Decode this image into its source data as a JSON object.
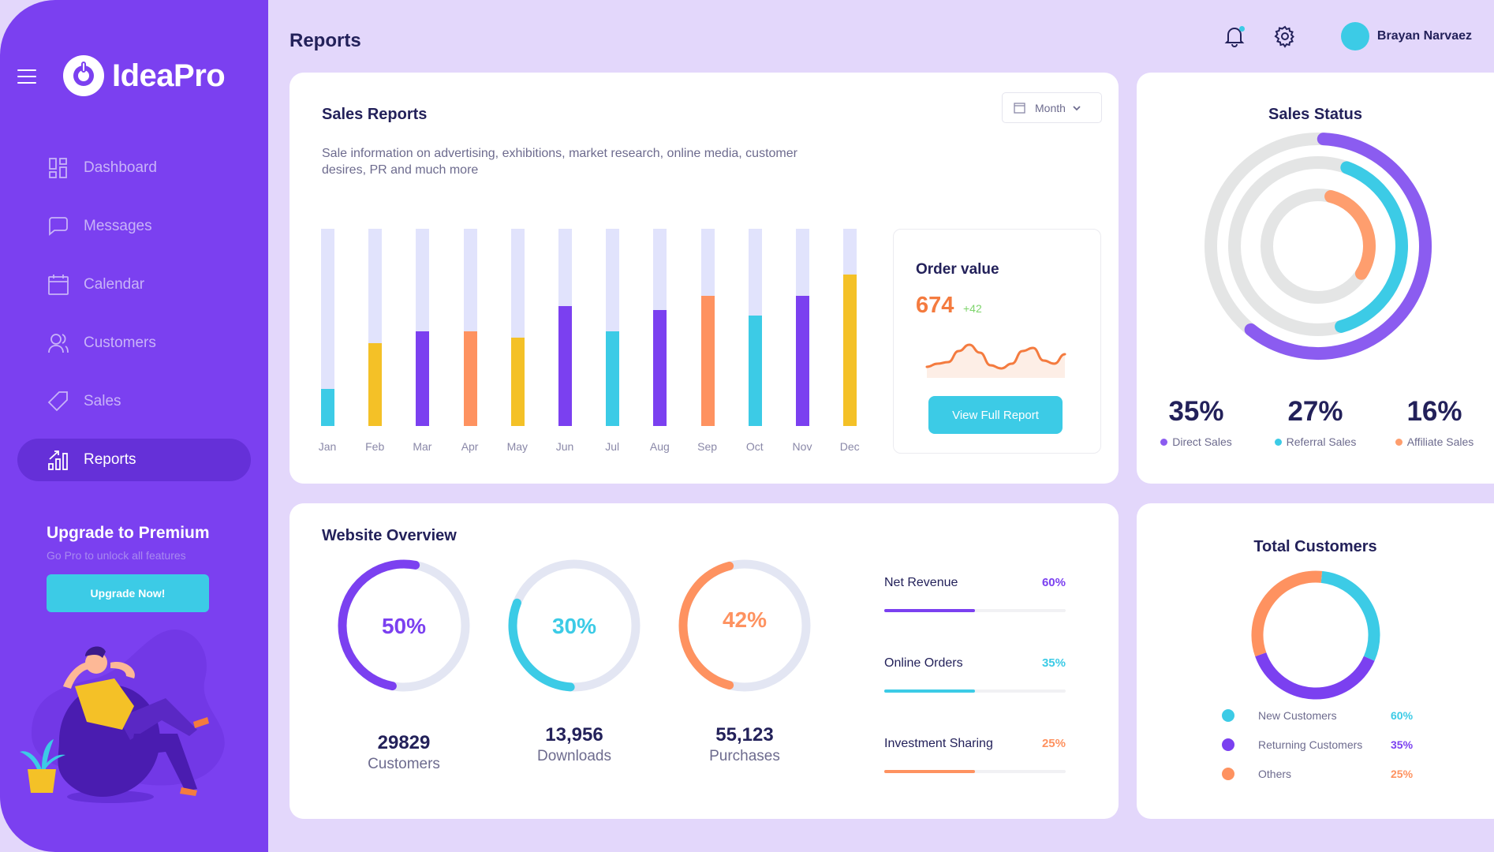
{
  "app": {
    "name": "IdeaPro"
  },
  "sidebar": {
    "items": [
      {
        "label": "Dashboard",
        "icon": "dashboard-icon",
        "active": false
      },
      {
        "label": "Messages",
        "icon": "message-icon",
        "active": false
      },
      {
        "label": "Calendar",
        "icon": "calendar-icon",
        "active": false
      },
      {
        "label": "Customers",
        "icon": "users-icon",
        "active": false
      },
      {
        "label": "Sales",
        "icon": "tag-icon",
        "active": false
      },
      {
        "label": "Reports",
        "icon": "chart-icon",
        "active": true
      }
    ],
    "upgrade": {
      "title": "Upgrade to Premium",
      "subtitle": "Go Pro to unlock all features",
      "button": "Upgrade Now!"
    }
  },
  "header": {
    "title": "Reports",
    "user_name": "Brayan Narvaez",
    "has_notification": true
  },
  "colors": {
    "purple": "#7b40f0",
    "cyan": "#3ccbe6",
    "orange": "#fe9260",
    "yellow": "#f4c127",
    "track": "#e1e3fc"
  },
  "sales_reports": {
    "title": "Sales Reports",
    "description": "Sale information on advertising, exhibitions, market research, online media, customer desires, PR and much more",
    "period_select": "Month",
    "order_value": {
      "title": "Order value",
      "value": "674",
      "delta": "+42",
      "button": "View Full Report"
    }
  },
  "sales_status": {
    "title": "Sales Status",
    "items": [
      {
        "value": "35%",
        "label": "Direct Sales",
        "color": "#8b5cf0"
      },
      {
        "value": "27%",
        "label": "Referral Sales",
        "color": "#3ccbe6"
      },
      {
        "value": "16%",
        "label": "Affiliate Sales",
        "color": "#fe9e6e"
      }
    ]
  },
  "website_overview": {
    "title": "Website Overview",
    "gauges": [
      {
        "percent": "50%",
        "fraction": 0.5,
        "number": "29829",
        "label": "Customers",
        "color": "#7b40f0"
      },
      {
        "percent": "30%",
        "fraction": 0.3,
        "number": "13,956",
        "label": "Downloads",
        "color": "#3ccbe6"
      },
      {
        "percent": "42%",
        "fraction": 0.42,
        "number": "55,123",
        "label": "Purchases",
        "color": "#fe9260"
      }
    ],
    "progress": [
      {
        "label": "Net Revenue",
        "percent": "60%",
        "fill": 0.5,
        "color": "#7b40f0"
      },
      {
        "label": "Online Orders",
        "percent": "35%",
        "fill": 0.5,
        "color": "#3ccbe6"
      },
      {
        "label": "Investment Sharing",
        "percent": "25%",
        "fill": 0.5,
        "color": "#fe9260"
      }
    ]
  },
  "total_customers": {
    "title": "Total Customers",
    "legend": [
      {
        "label": "New Customers",
        "percent": "60%",
        "color": "#3ccbe6"
      },
      {
        "label": "Returning Customers",
        "percent": "35%",
        "color": "#7b40f0"
      },
      {
        "label": "Others",
        "percent": "25%",
        "color": "#fe9260"
      }
    ]
  },
  "chart_data": [
    {
      "type": "bar",
      "title": "Sales Reports",
      "categories": [
        "Jan",
        "Feb",
        "Mar",
        "Apr",
        "May",
        "Jun",
        "Jul",
        "Aug",
        "Sep",
        "Oct",
        "Nov",
        "Dec"
      ],
      "values": [
        19,
        42,
        48,
        48,
        45,
        61,
        48,
        59,
        66,
        56,
        66,
        77
      ],
      "bar_colors": [
        "#3ccbe6",
        "#f4c127",
        "#7b40f0",
        "#fe9260",
        "#f4c127",
        "#7b40f0",
        "#3ccbe6",
        "#7b40f0",
        "#fe9260",
        "#3ccbe6",
        "#7b40f0",
        "#f4c127"
      ],
      "ylim": [
        0,
        100
      ],
      "xlabel": "",
      "ylabel": "",
      "grid": false
    },
    {
      "type": "line",
      "title": "Order value sparkline",
      "values": [
        10,
        14,
        16,
        30,
        38,
        28,
        12,
        8,
        14,
        30,
        34,
        18,
        14,
        26
      ],
      "color": "#f47b3f"
    },
    {
      "type": "pie",
      "title": "Sales Status",
      "categories": [
        "Direct Sales",
        "Referral Sales",
        "Affiliate Sales"
      ],
      "values": [
        35,
        27,
        16
      ],
      "ring_fractions": [
        0.6,
        0.4,
        0.3
      ]
    },
    {
      "type": "pie",
      "title": "Total Customers",
      "categories": [
        "New Customers",
        "Returning Customers",
        "Others"
      ],
      "values": [
        60,
        35,
        25
      ],
      "segment_fractions": [
        0.3,
        0.38,
        0.32
      ]
    }
  ]
}
